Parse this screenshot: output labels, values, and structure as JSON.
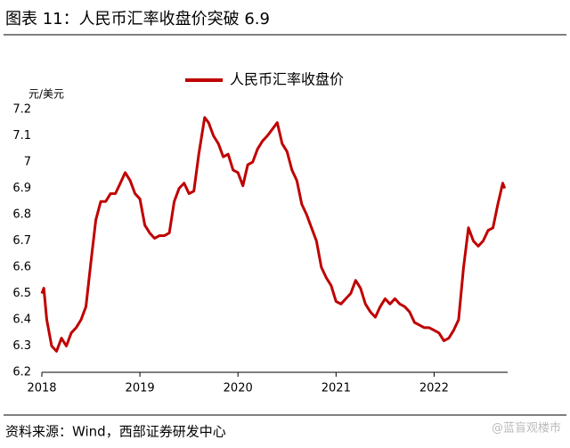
{
  "chart_data": {
    "type": "line",
    "title": "图表 11：人民币汇率收盘价突破 6.9",
    "y_unit": "元/美元",
    "source": "资料来源：Wind，西部证券研发中心",
    "watermark": "@蓝盲观楼市",
    "x": [
      2018.0,
      2018.02,
      2018.05,
      2018.1,
      2018.15,
      2018.2,
      2018.25,
      2018.3,
      2018.35,
      2018.4,
      2018.45,
      2018.5,
      2018.55,
      2018.6,
      2018.65,
      2018.7,
      2018.75,
      2018.8,
      2018.85,
      2018.9,
      2018.95,
      2019.0,
      2019.05,
      2019.1,
      2019.15,
      2019.2,
      2019.25,
      2019.3,
      2019.35,
      2019.4,
      2019.45,
      2019.5,
      2019.55,
      2019.6,
      2019.66,
      2019.7,
      2019.75,
      2019.8,
      2019.85,
      2019.9,
      2019.95,
      2020.0,
      2020.05,
      2020.1,
      2020.15,
      2020.2,
      2020.25,
      2020.3,
      2020.4,
      2020.45,
      2020.5,
      2020.55,
      2020.6,
      2020.65,
      2020.7,
      2020.75,
      2020.8,
      2020.85,
      2020.9,
      2020.95,
      2021.0,
      2021.05,
      2021.1,
      2021.15,
      2021.2,
      2021.25,
      2021.3,
      2021.35,
      2021.4,
      2021.45,
      2021.5,
      2021.55,
      2021.6,
      2021.65,
      2021.7,
      2021.75,
      2021.8,
      2021.85,
      2021.9,
      2021.95,
      2022.0,
      2022.05,
      2022.1,
      2022.15,
      2022.2,
      2022.25,
      2022.3,
      2022.35,
      2022.4,
      2022.45,
      2022.5,
      2022.55,
      2022.6,
      2022.65,
      2022.7,
      2022.72
    ],
    "series": [
      {
        "name": "人民币汇率收盘价",
        "color": "#c00000",
        "values": [
          6.5,
          6.52,
          6.4,
          6.3,
          6.28,
          6.33,
          6.3,
          6.35,
          6.37,
          6.4,
          6.45,
          6.62,
          6.78,
          6.85,
          6.85,
          6.88,
          6.88,
          6.92,
          6.96,
          6.93,
          6.88,
          6.86,
          6.76,
          6.73,
          6.71,
          6.72,
          6.72,
          6.73,
          6.85,
          6.9,
          6.92,
          6.88,
          6.89,
          7.03,
          7.17,
          7.15,
          7.1,
          7.07,
          7.02,
          7.03,
          6.97,
          6.96,
          6.91,
          6.99,
          7.0,
          7.05,
          7.08,
          7.1,
          7.15,
          7.07,
          7.04,
          6.97,
          6.93,
          6.84,
          6.8,
          6.75,
          6.7,
          6.6,
          6.56,
          6.53,
          6.47,
          6.46,
          6.48,
          6.5,
          6.55,
          6.52,
          6.46,
          6.43,
          6.41,
          6.45,
          6.48,
          6.46,
          6.48,
          6.46,
          6.45,
          6.43,
          6.39,
          6.38,
          6.37,
          6.37,
          6.36,
          6.35,
          6.32,
          6.33,
          6.36,
          6.4,
          6.6,
          6.75,
          6.7,
          6.68,
          6.7,
          6.74,
          6.75,
          6.84,
          6.92,
          6.9
        ]
      }
    ],
    "xlim": [
      2018,
      2022.75
    ],
    "xticks": [
      2018,
      2019,
      2020,
      2021,
      2022
    ],
    "ylim": [
      6.2,
      7.2
    ],
    "yticks": [
      6.2,
      6.3,
      6.4,
      6.5,
      6.6,
      6.7,
      6.8,
      6.9,
      7,
      7.1,
      7.2
    ],
    "legend": "top"
  }
}
